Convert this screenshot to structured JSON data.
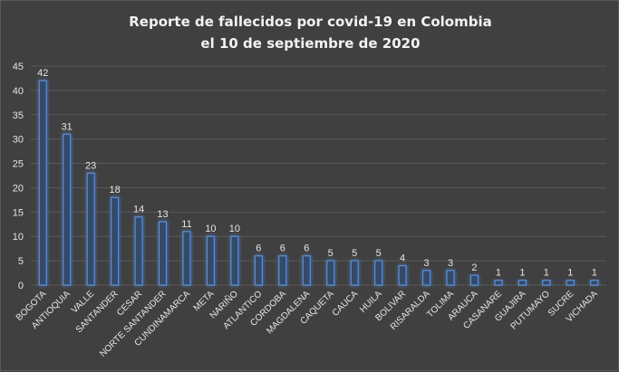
{
  "chart_data": {
    "type": "bar",
    "title": [
      "Reporte de fallecidos por covid-19 en Colombia",
      "el 10 de septiembre de 2020"
    ],
    "xlabel": "",
    "ylabel": "",
    "ylim": [
      0,
      45
    ],
    "yticks": [
      0,
      5,
      10,
      15,
      20,
      25,
      30,
      35,
      40,
      45
    ],
    "grid": true,
    "categories": [
      "BOGOTA",
      "ANTIOQUIA",
      "VALLE",
      "SANTANDER",
      "CESAR",
      "NORTE SANTANDER",
      "CUNDINAMARCA",
      "META",
      "NARIÑO",
      "ATLANTICO",
      "CORDOBA",
      "MAGDALENA",
      "CAQUETA",
      "CAUCA",
      "HUILA",
      "BOLIVAR",
      "RISARALDA",
      "TOLIMA",
      "ARAUCA",
      "CASANARE",
      "GUAJIRA",
      "PUTUMAYO",
      "SUCRE",
      "VICHADA"
    ],
    "values": [
      42,
      31,
      23,
      18,
      14,
      13,
      11,
      10,
      10,
      6,
      6,
      6,
      5,
      5,
      5,
      4,
      3,
      3,
      2,
      1,
      1,
      1,
      1,
      1
    ],
    "colors": {
      "background": "#404040",
      "bar_fill": "#354a6b",
      "bar_stroke": "#5b8fd6",
      "bar_glow": "#2f6fd0",
      "grid": "#595959",
      "text": "#e6e6e6",
      "title": "#f2f2f2"
    }
  }
}
